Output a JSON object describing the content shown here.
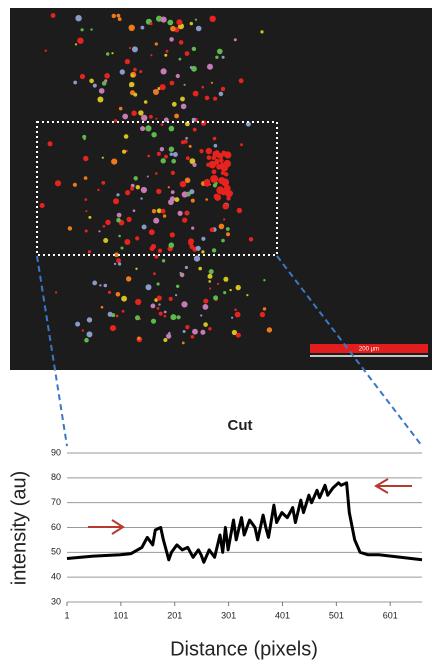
{
  "image": {
    "scale_bar_label": "200 µm"
  },
  "chart_data": {
    "type": "line",
    "title": "Cut",
    "x_label": "Distance (pixels)",
    "y_label": "intensity (au)",
    "x": [
      1,
      50,
      100,
      120,
      140,
      150,
      160,
      165,
      175,
      180,
      190,
      195,
      205,
      215,
      225,
      235,
      245,
      250,
      255,
      265,
      275,
      285,
      290,
      295,
      300,
      310,
      315,
      325,
      330,
      340,
      350,
      355,
      365,
      370,
      375,
      385,
      390,
      400,
      410,
      420,
      425,
      435,
      440,
      450,
      455,
      465,
      470,
      480,
      485,
      495,
      505,
      510,
      520,
      525,
      535,
      545,
      560,
      580,
      620,
      660
    ],
    "series": [
      {
        "name": "Cut",
        "color": "#000000",
        "values": [
          47.5,
          48.5,
          49,
          49.5,
          52,
          56,
          53,
          59,
          60,
          55,
          47,
          50,
          53,
          51,
          52,
          48,
          51,
          49,
          46,
          51,
          48,
          57,
          50,
          60,
          51,
          63,
          55,
          64,
          57,
          63,
          60,
          55,
          65,
          60,
          56,
          69,
          62,
          66,
          64,
          68,
          62,
          71,
          66,
          73,
          70,
          75,
          72,
          77,
          73,
          76,
          78,
          77,
          78,
          66,
          55,
          50,
          49,
          49,
          48,
          47
        ]
      }
    ],
    "xlim": [
      1,
      660
    ],
    "ylim": [
      30,
      90
    ],
    "xticks": [
      1,
      101,
      201,
      301,
      401,
      501,
      601
    ],
    "yticks": [
      30,
      40,
      50,
      60,
      70,
      80,
      90
    ],
    "grid": true
  }
}
